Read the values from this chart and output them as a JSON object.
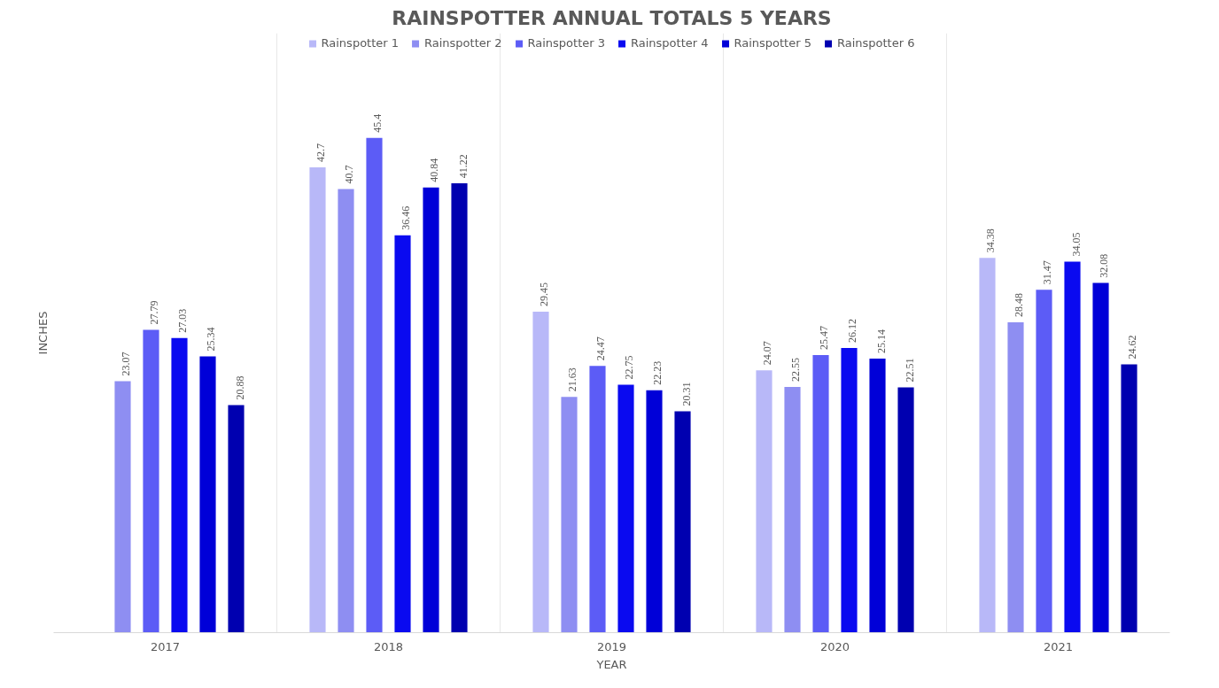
{
  "chart_data": {
    "type": "bar",
    "title": "RAINSPOTTER ANNUAL TOTALS 5 YEARS",
    "xlabel": "YEAR",
    "ylabel": "INCHES",
    "categories": [
      "2017",
      "2018",
      "2019",
      "2020",
      "2021"
    ],
    "series": [
      {
        "name": "Rainspotter 1",
        "color": "#b8b8f8",
        "values": [
          null,
          42.7,
          29.45,
          24.07,
          34.38
        ]
      },
      {
        "name": "Rainspotter 2",
        "color": "#8e8ef2",
        "values": [
          23.07,
          40.7,
          21.63,
          22.55,
          28.48
        ]
      },
      {
        "name": "Rainspotter 3",
        "color": "#5c5cf6",
        "values": [
          27.79,
          45.4,
          24.47,
          25.47,
          31.47
        ]
      },
      {
        "name": "Rainspotter 4",
        "color": "#0a0af0",
        "values": [
          27.03,
          36.46,
          22.75,
          26.12,
          34.05
        ]
      },
      {
        "name": "Rainspotter 5",
        "color": "#0000d8",
        "values": [
          25.34,
          40.84,
          22.23,
          25.14,
          32.08
        ]
      },
      {
        "name": "Rainspotter 6",
        "color": "#0000b0",
        "values": [
          20.88,
          41.22,
          20.31,
          22.51,
          24.62
        ]
      }
    ],
    "ylim": [
      0,
      55
    ],
    "data_labels": true,
    "grid": "x",
    "legend": "top",
    "tick_labels": "x"
  }
}
